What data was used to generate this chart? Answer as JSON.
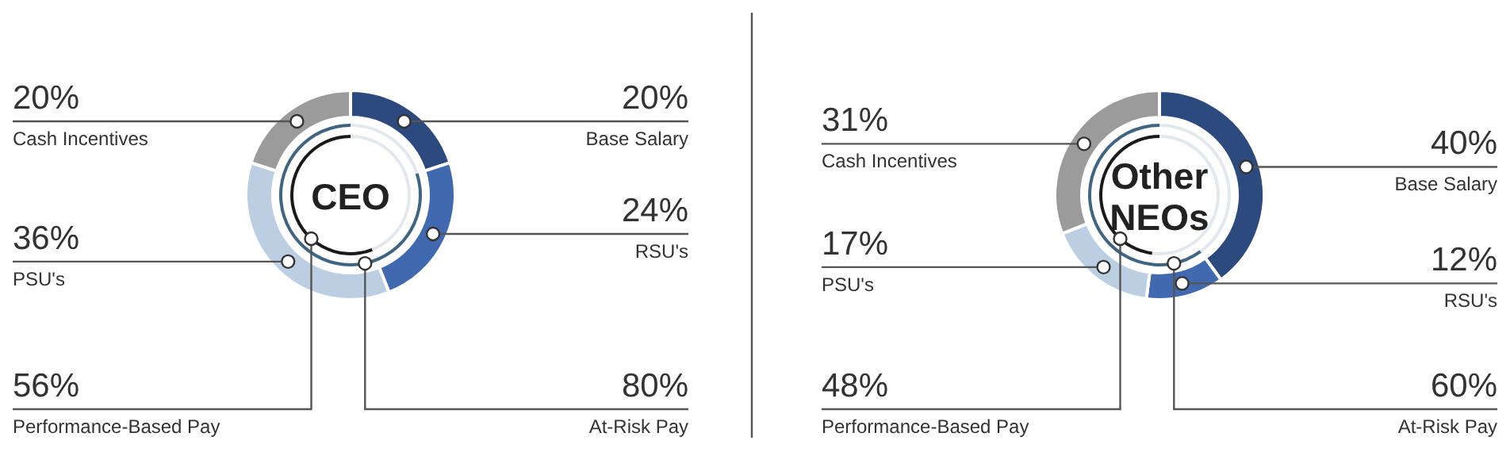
{
  "chart_data": [
    {
      "type": "donut",
      "title": "CEO",
      "categories": [
        "Base Salary",
        "RSU's",
        "PSU's",
        "Cash Incentives"
      ],
      "values": [
        20,
        24,
        36,
        20
      ],
      "colors": [
        "#2c4a7e",
        "#4169b0",
        "#bccfe2",
        "#9b9b9b"
      ],
      "value_labels": [
        "20%",
        "24%",
        "36%",
        "20%"
      ]
    },
    {
      "type": "donut",
      "categories": [
        null,
        "At-Risk Pay"
      ],
      "values": [
        20,
        80
      ],
      "colors": [
        "#e4e8ec",
        "#3f6580"
      ],
      "value_labels": [
        null,
        "80%"
      ]
    },
    {
      "type": "donut",
      "categories": [
        null,
        "Performance-Based Pay"
      ],
      "values": [
        44,
        56
      ],
      "colors": [
        "#e4e8ec",
        "#1a1a1a"
      ],
      "value_labels": [
        null,
        "56%"
      ]
    },
    {
      "type": "donut",
      "title": "Other NEOs",
      "categories": [
        "Base Salary",
        "RSU's",
        "PSU's",
        "Cash Incentives"
      ],
      "values": [
        40,
        12,
        17,
        31
      ],
      "colors": [
        "#2c4a7e",
        "#4169b0",
        "#bccfe2",
        "#9b9b9b"
      ],
      "value_labels": [
        "40%",
        "12%",
        "17%",
        "31%"
      ]
    },
    {
      "type": "donut",
      "categories": [
        null,
        "At-Risk Pay"
      ],
      "values": [
        40,
        60
      ],
      "colors": [
        "#e4e8ec",
        "#3f6580"
      ],
      "value_labels": [
        null,
        "60%"
      ]
    },
    {
      "type": "donut",
      "categories": [
        null,
        "Performance-Based Pay"
      ],
      "values": [
        52,
        48
      ],
      "colors": [
        "#e4e8ec",
        "#1a1a1a"
      ],
      "value_labels": [
        null,
        "48%"
      ]
    }
  ]
}
